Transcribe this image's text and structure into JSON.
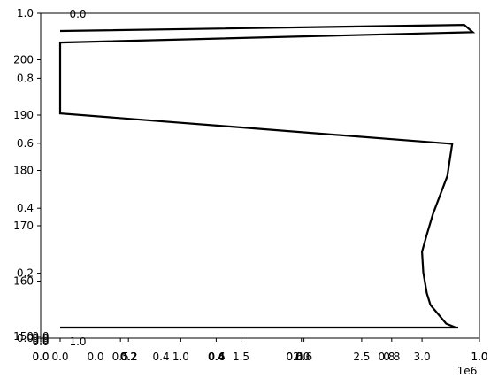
{
  "chart_data": {
    "type": "line",
    "title": "",
    "xlabel": "",
    "ylabel": "",
    "x_offset_label": "1e6",
    "x_range": [
      0,
      3400000
    ],
    "y_range": [
      149.5,
      204
    ],
    "x_ticks": [
      0,
      500000,
      1000000,
      1500000,
      2000000,
      2500000,
      3000000
    ],
    "x_tick_labels": [
      "0.0",
      "0.5",
      "1.0",
      "1.5",
      "2.0",
      "2.5",
      "3.0"
    ],
    "y_ticks": [
      150,
      160,
      170,
      180,
      190,
      200
    ],
    "y_tick_labels": [
      "150",
      "160",
      "170",
      "180",
      "190",
      "200"
    ],
    "series": [
      {
        "color": "#000000",
        "points": [
          [
            3280000,
            151.6
          ],
          [
            3200000,
            152.3
          ],
          [
            3070000,
            155.7
          ],
          [
            3040000,
            157.8
          ],
          [
            3010000,
            161.6
          ],
          [
            3000000,
            165.3
          ],
          [
            3040000,
            168.4
          ],
          [
            3090000,
            172.1
          ],
          [
            3210000,
            179.0
          ],
          [
            3250000,
            184.8
          ],
          [
            0,
            190.3
          ],
          [
            0,
            203.1
          ],
          [
            3420000,
            205.0
          ],
          [
            3350000,
            206.3
          ],
          [
            0,
            205.2
          ]
        ],
        "bottom_segment": [
          [
            0,
            151.6
          ],
          [
            3300000,
            151.6
          ]
        ]
      }
    ],
    "overlay_axes": {
      "left_ticks": [
        0.0,
        0.2,
        0.4,
        0.6,
        0.8,
        1.0
      ],
      "left_tick_labels": [
        "0.0",
        "0.2",
        "0.4",
        "0.6",
        "0.8",
        "1.0"
      ],
      "bottom_ticks": [
        0.0,
        0.2,
        0.4,
        0.6,
        0.8,
        1.0
      ],
      "bottom_tick_labels": [
        "0.0",
        "0.2",
        "0.4",
        "0.6",
        "0.8",
        "1.0"
      ],
      "stray_labels": [
        "0.0",
        "1.0",
        "0.0",
        "0.0",
        "0.2",
        "0.4",
        "0.6",
        "0.0",
        "0.0",
        "0.0",
        "0.0",
        "0.0",
        "0.2",
        "0.4",
        "0.6",
        "0.8",
        "1.0"
      ]
    },
    "grid": false,
    "legend": "none"
  }
}
